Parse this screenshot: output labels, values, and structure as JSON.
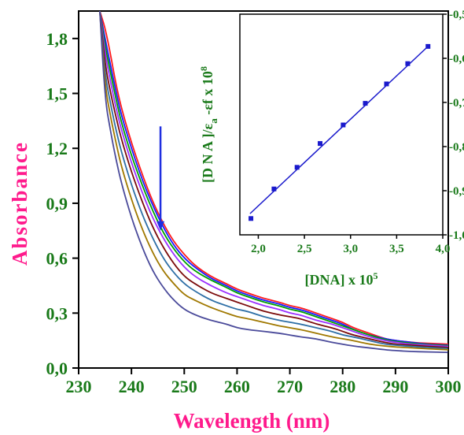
{
  "chart_data": [
    {
      "type": "line",
      "title": "",
      "xlabel": "Wavelength (nm)",
      "ylabel": "Absorbance",
      "xlim": [
        230,
        300
      ],
      "ylim": [
        0.0,
        1.95
      ],
      "x_ticks": [
        230,
        240,
        250,
        260,
        270,
        280,
        290,
        300
      ],
      "x_tick_labels": [
        "230",
        "240",
        "250",
        "260",
        "270",
        "280",
        "290",
        "300"
      ],
      "y_ticks": [
        0.0,
        0.3,
        0.6,
        0.9,
        1.2,
        1.5,
        1.8
      ],
      "y_tick_labels": [
        "0,0",
        "0,3",
        "0,6",
        "0,9",
        "1,2",
        "1,5",
        "1,8"
      ],
      "grid": false,
      "legend": "none",
      "arrow": {
        "x": 245.5,
        "y_from": 1.32,
        "y_to": 0.75,
        "direction": "down",
        "color": "#1f2fe0"
      },
      "x": [
        234,
        235,
        236,
        237,
        238,
        240,
        242,
        244,
        246,
        248,
        250,
        252,
        255,
        258,
        260,
        262,
        265,
        268,
        270,
        272,
        275,
        278,
        280,
        282,
        285,
        288,
        290,
        293,
        296,
        300
      ],
      "series": [
        {
          "color": "#ff1a1a",
          "values": [
            1.95,
            1.86,
            1.72,
            1.56,
            1.43,
            1.23,
            1.06,
            0.91,
            0.79,
            0.69,
            0.62,
            0.56,
            0.5,
            0.46,
            0.43,
            0.41,
            0.38,
            0.36,
            0.34,
            0.33,
            0.3,
            0.27,
            0.25,
            0.22,
            0.19,
            0.16,
            0.15,
            0.14,
            0.135,
            0.13
          ]
        },
        {
          "color": "#1a1aff",
          "values": [
            1.95,
            1.8,
            1.66,
            1.52,
            1.39,
            1.2,
            1.03,
            0.89,
            0.77,
            0.67,
            0.6,
            0.55,
            0.49,
            0.45,
            0.42,
            0.4,
            0.37,
            0.35,
            0.33,
            0.32,
            0.29,
            0.26,
            0.24,
            0.21,
            0.18,
            0.16,
            0.15,
            0.14,
            0.13,
            0.125
          ]
        },
        {
          "color": "#00a000",
          "values": [
            1.95,
            1.76,
            1.62,
            1.48,
            1.35,
            1.16,
            1.0,
            0.86,
            0.74,
            0.65,
            0.58,
            0.53,
            0.48,
            0.44,
            0.41,
            0.39,
            0.36,
            0.34,
            0.32,
            0.31,
            0.28,
            0.25,
            0.23,
            0.21,
            0.18,
            0.155,
            0.145,
            0.135,
            0.128,
            0.122
          ]
        },
        {
          "color": "#9b30ff",
          "values": [
            1.95,
            1.72,
            1.57,
            1.43,
            1.31,
            1.12,
            0.96,
            0.82,
            0.71,
            0.62,
            0.55,
            0.5,
            0.45,
            0.41,
            0.39,
            0.37,
            0.34,
            0.32,
            0.3,
            0.29,
            0.26,
            0.24,
            0.22,
            0.2,
            0.17,
            0.15,
            0.14,
            0.13,
            0.125,
            0.118
          ]
        },
        {
          "color": "#7a0a0a",
          "values": [
            1.95,
            1.66,
            1.51,
            1.38,
            1.26,
            1.07,
            0.91,
            0.77,
            0.66,
            0.57,
            0.5,
            0.46,
            0.41,
            0.38,
            0.36,
            0.34,
            0.31,
            0.29,
            0.28,
            0.27,
            0.24,
            0.22,
            0.2,
            0.18,
            0.16,
            0.14,
            0.13,
            0.125,
            0.118,
            0.112
          ]
        },
        {
          "color": "#2e6fa6",
          "values": [
            1.95,
            1.6,
            1.45,
            1.31,
            1.19,
            1.0,
            0.84,
            0.71,
            0.6,
            0.52,
            0.46,
            0.42,
            0.37,
            0.34,
            0.32,
            0.31,
            0.28,
            0.26,
            0.25,
            0.24,
            0.22,
            0.2,
            0.18,
            0.17,
            0.15,
            0.13,
            0.125,
            0.118,
            0.112,
            0.107
          ]
        },
        {
          "color": "#a07800",
          "values": [
            1.95,
            1.54,
            1.38,
            1.24,
            1.11,
            0.92,
            0.76,
            0.63,
            0.53,
            0.46,
            0.4,
            0.37,
            0.33,
            0.3,
            0.28,
            0.27,
            0.25,
            0.23,
            0.22,
            0.21,
            0.19,
            0.17,
            0.16,
            0.15,
            0.13,
            0.12,
            0.115,
            0.11,
            0.105,
            0.1
          ]
        },
        {
          "color": "#4a4a9a",
          "values": [
            1.95,
            1.47,
            1.3,
            1.15,
            1.02,
            0.82,
            0.66,
            0.53,
            0.44,
            0.37,
            0.32,
            0.29,
            0.26,
            0.24,
            0.22,
            0.21,
            0.2,
            0.19,
            0.18,
            0.17,
            0.16,
            0.14,
            0.13,
            0.12,
            0.11,
            0.1,
            0.095,
            0.09,
            0.088,
            0.085
          ]
        }
      ]
    },
    {
      "type": "scatter",
      "title": "",
      "xlabel": "[DNA] x 10",
      "xlabel_sup": "5",
      "ylabel": "[D N A ]/ε",
      "ylabel_sub": "a",
      "ylabel_rest": " -εf  x  10",
      "ylabel_sup": "8",
      "xlim": [
        1.8,
        4.0
      ],
      "ylim": [
        -1.0,
        -0.5
      ],
      "x_ticks": [
        2.0,
        2.5,
        3.0,
        3.5,
        4.0
      ],
      "x_tick_labels": [
        "2,0",
        "2,5",
        "3,0",
        "3,5",
        "4,0"
      ],
      "y_ticks": [
        -1.0,
        -0.9,
        -0.8,
        -0.7,
        -0.6,
        -0.5
      ],
      "y_tick_labels": [
        "-1,0",
        "-0,9",
        "-0,8",
        "-0,7",
        "-0,6",
        "-0,5"
      ],
      "grid": false,
      "points": {
        "x": [
          1.92,
          2.17,
          2.42,
          2.67,
          2.92,
          3.16,
          3.39,
          3.62,
          3.84
        ],
        "y": [
          -0.963,
          -0.896,
          -0.847,
          -0.793,
          -0.751,
          -0.702,
          -0.658,
          -0.612,
          -0.573
        ]
      },
      "fit_line": {
        "x": [
          1.91,
          3.85
        ],
        "y": [
          -0.952,
          -0.571
        ]
      },
      "color": "#1a1acc"
    }
  ]
}
